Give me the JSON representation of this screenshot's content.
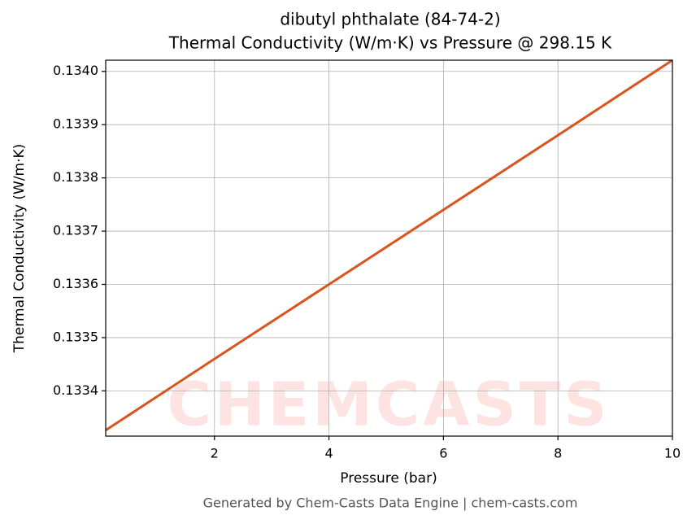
{
  "chart_data": {
    "type": "line",
    "title": "dibutyl phthalate (84-74-2)",
    "subtitle": "Thermal Conductivity (W/m·K) vs Pressure @ 298.15 K",
    "x_label": "Pressure (bar)",
    "y_label": "Thermal Conductivity (W/m·K)",
    "watermark": "CHEMCASTS",
    "footer": "Generated by Chem-Casts Data Engine | chem-casts.com",
    "x": [
      0.1,
      2,
      4,
      6,
      8,
      10
    ],
    "series": [
      {
        "name": "Thermal Conductivity",
        "color": "#d9541e",
        "values": [
          0.133326,
          0.13346,
          0.1336,
          0.13374,
          0.13388,
          0.134021
        ]
      }
    ],
    "xlim": [
      0.1,
      10
    ],
    "xticks": [
      2,
      4,
      6,
      8,
      10
    ],
    "ylim": [
      0.133315,
      0.134021
    ],
    "yticks": [
      0.1334,
      0.1335,
      0.1336,
      0.1337,
      0.1338,
      0.1339,
      {
        "value": 0.134,
        "label": "0.1340"
      }
    ],
    "grid": true
  }
}
